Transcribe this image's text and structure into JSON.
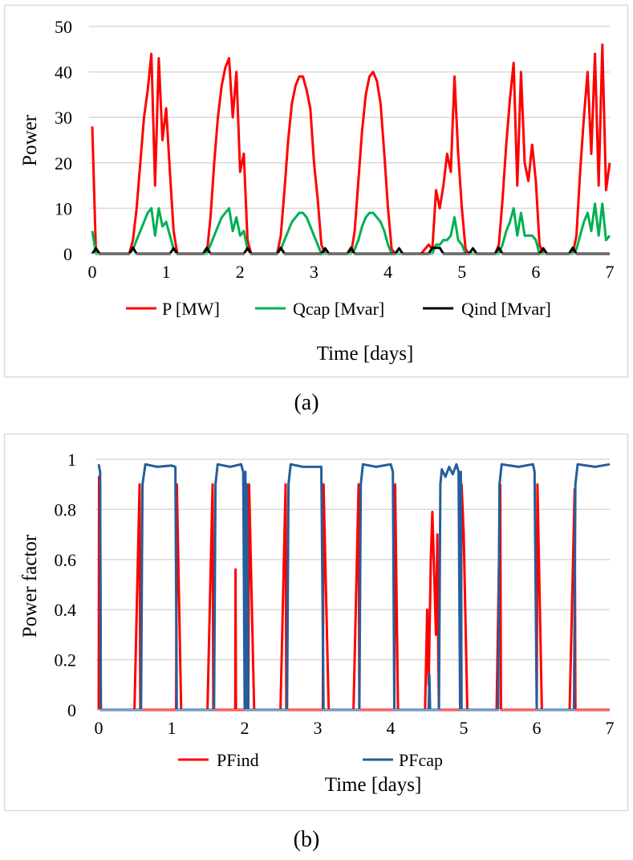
{
  "chart_data": [
    {
      "id": "a",
      "type": "line",
      "caption": "(a)",
      "xlabel": "Time [days]",
      "ylabel": "Power",
      "xlim": [
        0,
        7
      ],
      "ylim": [
        0,
        50
      ],
      "xticks": [
        0,
        1,
        2,
        3,
        4,
        5,
        6,
        7
      ],
      "yticks": [
        0,
        10,
        20,
        30,
        40,
        50
      ],
      "grid": "horizontal",
      "legend": "bottom",
      "x_step_days": 0.05,
      "series": [
        {
          "name": "P [MW]",
          "color": "#ff0000",
          "values": [
            28,
            0,
            0,
            0,
            0,
            0,
            0,
            0,
            0,
            0,
            0,
            3,
            10,
            20,
            30,
            36,
            44,
            15,
            43,
            25,
            32,
            18,
            5,
            0,
            0,
            0,
            0,
            0,
            0,
            0,
            0,
            0,
            8,
            20,
            30,
            37,
            41,
            43,
            30,
            40,
            18,
            22,
            3,
            0,
            0,
            0,
            0,
            0,
            0,
            0,
            0,
            4,
            14,
            25,
            33,
            37,
            39,
            39,
            36,
            32,
            20,
            12,
            2,
            0,
            0,
            0,
            0,
            0,
            0,
            0,
            0,
            5,
            16,
            27,
            35,
            39,
            40,
            38,
            33,
            22,
            10,
            1,
            0,
            0,
            0,
            0,
            0,
            0,
            0,
            0,
            1,
            2,
            1,
            14,
            10,
            15,
            22,
            18,
            39,
            22,
            10,
            1,
            0,
            0,
            0,
            0,
            0,
            0,
            0,
            0,
            2,
            12,
            24,
            34,
            42,
            15,
            40,
            20,
            16,
            24,
            16,
            2,
            0,
            0,
            0,
            0,
            0,
            0,
            0,
            0,
            0,
            4,
            18,
            30,
            40,
            22,
            44,
            15,
            46,
            14,
            20
          ]
        },
        {
          "name": "Qcap [Mvar]",
          "color": "#00b050",
          "values": [
            5,
            0,
            0,
            0,
            0,
            0,
            0,
            0,
            0,
            0,
            0,
            1,
            3,
            5,
            7,
            9,
            10,
            4,
            10,
            6,
            7,
            4,
            1,
            0,
            0,
            0,
            0,
            0,
            0,
            0,
            0,
            0,
            2,
            4,
            6,
            8,
            9,
            10,
            5,
            8,
            4,
            5,
            1,
            0,
            0,
            0,
            0,
            0,
            0,
            0,
            0,
            1,
            3,
            5,
            7,
            8,
            9,
            9,
            8,
            6,
            4,
            2,
            0,
            0,
            0,
            0,
            0,
            0,
            0,
            0,
            0,
            1,
            3,
            6,
            8,
            9,
            9,
            8,
            7,
            5,
            2,
            0,
            0,
            0,
            0,
            0,
            0,
            0,
            0,
            0,
            0,
            0,
            0,
            2,
            2,
            3,
            3,
            4,
            8,
            3,
            2,
            0,
            0,
            0,
            0,
            0,
            0,
            0,
            0,
            0,
            0,
            2,
            5,
            7,
            10,
            4,
            9,
            4,
            4,
            4,
            3,
            0,
            0,
            0,
            0,
            0,
            0,
            0,
            0,
            0,
            0,
            1,
            4,
            7,
            9,
            5,
            11,
            4,
            11,
            3,
            4
          ]
        },
        {
          "name": "Qind [Mvar]",
          "color": "#000000",
          "values": [
            0,
            1.2,
            0,
            0,
            0,
            0,
            0,
            0,
            0,
            0,
            0,
            1.3,
            0,
            0,
            0,
            0,
            0,
            0,
            0,
            0,
            0,
            0,
            1.2,
            0,
            0,
            0,
            0,
            0,
            0,
            0,
            0,
            1.3,
            0,
            0,
            0,
            0,
            0,
            0,
            0,
            0,
            0,
            0,
            1.2,
            0,
            0,
            0,
            0,
            0,
            0,
            0,
            0,
            1.3,
            0,
            0,
            0,
            0,
            0,
            0,
            0,
            0,
            0,
            0,
            0,
            1.2,
            0,
            0,
            0,
            0,
            0,
            0,
            1.3,
            0,
            0,
            0,
            0,
            0,
            0,
            0,
            0,
            0,
            0,
            0,
            0,
            1.2,
            0,
            0,
            0,
            0,
            0,
            0,
            0,
            0,
            1.3,
            1.3,
            1.3,
            0,
            0,
            0,
            0,
            0,
            0,
            0,
            0,
            1.2,
            0,
            0,
            0,
            0,
            0,
            0,
            1.3,
            0,
            0,
            0,
            0,
            0,
            0,
            0,
            0,
            0,
            0,
            0,
            1.2,
            0,
            0,
            0,
            0,
            0,
            0,
            0,
            1.3,
            0,
            0,
            0,
            0,
            0,
            0,
            0,
            0,
            0,
            0
          ]
        }
      ]
    },
    {
      "id": "b",
      "type": "line",
      "caption": "(b)",
      "xlabel": "Time [days]",
      "ylabel": "Power factor",
      "xlim": [
        0,
        7
      ],
      "ylim": [
        0,
        1
      ],
      "xticks": [
        0,
        1,
        2,
        3,
        4,
        5,
        6,
        7
      ],
      "yticks": [
        0,
        0.2,
        0.4,
        0.6,
        0.8,
        1
      ],
      "ytick_labels": [
        "0",
        "0.2",
        "0.4",
        "0.6",
        "0.8",
        "1"
      ],
      "grid": "horizontal",
      "legend": "bottom",
      "series": [
        {
          "name": "PFind",
          "color": "#ff0000",
          "points": [
            [
              0,
              0
            ],
            [
              0.005,
              0.93
            ],
            [
              0.02,
              0.9
            ],
            [
              0.03,
              0
            ],
            [
              0.49,
              0
            ],
            [
              0.56,
              0.9
            ],
            [
              0.57,
              0
            ],
            [
              1.06,
              0
            ],
            [
              1.07,
              0.9
            ],
            [
              1.13,
              0
            ],
            [
              1.49,
              0
            ],
            [
              1.56,
              0.9
            ],
            [
              1.57,
              0
            ],
            [
              1.87,
              0
            ],
            [
              1.875,
              0.56
            ],
            [
              1.88,
              0
            ],
            [
              2.05,
              0
            ],
            [
              2.06,
              0.9
            ],
            [
              2.13,
              0
            ],
            [
              2.49,
              0
            ],
            [
              2.56,
              0.9
            ],
            [
              2.57,
              0
            ],
            [
              3.07,
              0
            ],
            [
              3.08,
              0.9
            ],
            [
              3.15,
              0
            ],
            [
              3.49,
              0
            ],
            [
              3.56,
              0.9
            ],
            [
              3.57,
              0
            ],
            [
              4.05,
              0
            ],
            [
              4.06,
              0.9
            ],
            [
              4.1,
              0
            ],
            [
              4.47,
              0
            ],
            [
              4.5,
              0.4
            ],
            [
              4.52,
              0.1
            ],
            [
              4.55,
              0.6
            ],
            [
              4.57,
              0.79
            ],
            [
              4.6,
              0.5
            ],
            [
              4.62,
              0.3
            ],
            [
              4.64,
              0.7
            ],
            [
              4.65,
              0.27
            ],
            [
              4.66,
              0
            ],
            [
              4.96,
              0
            ],
            [
              4.97,
              0.9
            ],
            [
              5.0,
              0.7
            ],
            [
              5.05,
              0
            ],
            [
              5.45,
              0
            ],
            [
              5.5,
              0.9
            ],
            [
              5.51,
              0
            ],
            [
              6.0,
              0
            ],
            [
              6.01,
              0.9
            ],
            [
              6.07,
              0
            ],
            [
              6.45,
              0
            ],
            [
              6.52,
              0.88
            ],
            [
              6.53,
              0
            ],
            [
              7,
              0
            ]
          ]
        },
        {
          "name": "PFcap",
          "color": "#255e9b",
          "points": [
            [
              0,
              0.98
            ],
            [
              0.02,
              0.95
            ],
            [
              0.03,
              0
            ],
            [
              0.58,
              0
            ],
            [
              0.6,
              0.9
            ],
            [
              0.64,
              0.98
            ],
            [
              0.8,
              0.97
            ],
            [
              1.0,
              0.975
            ],
            [
              1.05,
              0.97
            ],
            [
              1.07,
              0
            ],
            [
              1.58,
              0
            ],
            [
              1.6,
              0.9
            ],
            [
              1.63,
              0.98
            ],
            [
              1.8,
              0.97
            ],
            [
              1.95,
              0.98
            ],
            [
              1.98,
              0.95
            ],
            [
              2.0,
              0
            ],
            [
              2.01,
              0.95
            ],
            [
              2.02,
              0
            ],
            [
              2.03,
              0.9
            ],
            [
              2.05,
              0
            ],
            [
              2.58,
              0
            ],
            [
              2.6,
              0.9
            ],
            [
              2.63,
              0.98
            ],
            [
              2.8,
              0.97
            ],
            [
              3.05,
              0.97
            ],
            [
              3.08,
              0
            ],
            [
              3.57,
              0
            ],
            [
              3.59,
              0.9
            ],
            [
              3.62,
              0.98
            ],
            [
              3.8,
              0.97
            ],
            [
              4.0,
              0.98
            ],
            [
              4.03,
              0.95
            ],
            [
              4.05,
              0
            ],
            [
              4.52,
              0
            ],
            [
              4.53,
              0.14
            ],
            [
              4.54,
              0
            ],
            [
              4.66,
              0
            ],
            [
              4.68,
              0.9
            ],
            [
              4.7,
              0.96
            ],
            [
              4.75,
              0.93
            ],
            [
              4.8,
              0.97
            ],
            [
              4.85,
              0.94
            ],
            [
              4.9,
              0.98
            ],
            [
              4.93,
              0.95
            ],
            [
              4.95,
              0
            ],
            [
              4.96,
              0.95
            ],
            [
              4.97,
              0
            ],
            [
              5.47,
              0
            ],
            [
              5.49,
              0.9
            ],
            [
              5.52,
              0.98
            ],
            [
              5.75,
              0.97
            ],
            [
              5.95,
              0.98
            ],
            [
              5.97,
              0.95
            ],
            [
              6.0,
              0
            ],
            [
              6.51,
              0
            ],
            [
              6.53,
              0.9
            ],
            [
              6.56,
              0.98
            ],
            [
              6.8,
              0.97
            ],
            [
              7.0,
              0.98
            ]
          ]
        }
      ]
    }
  ]
}
